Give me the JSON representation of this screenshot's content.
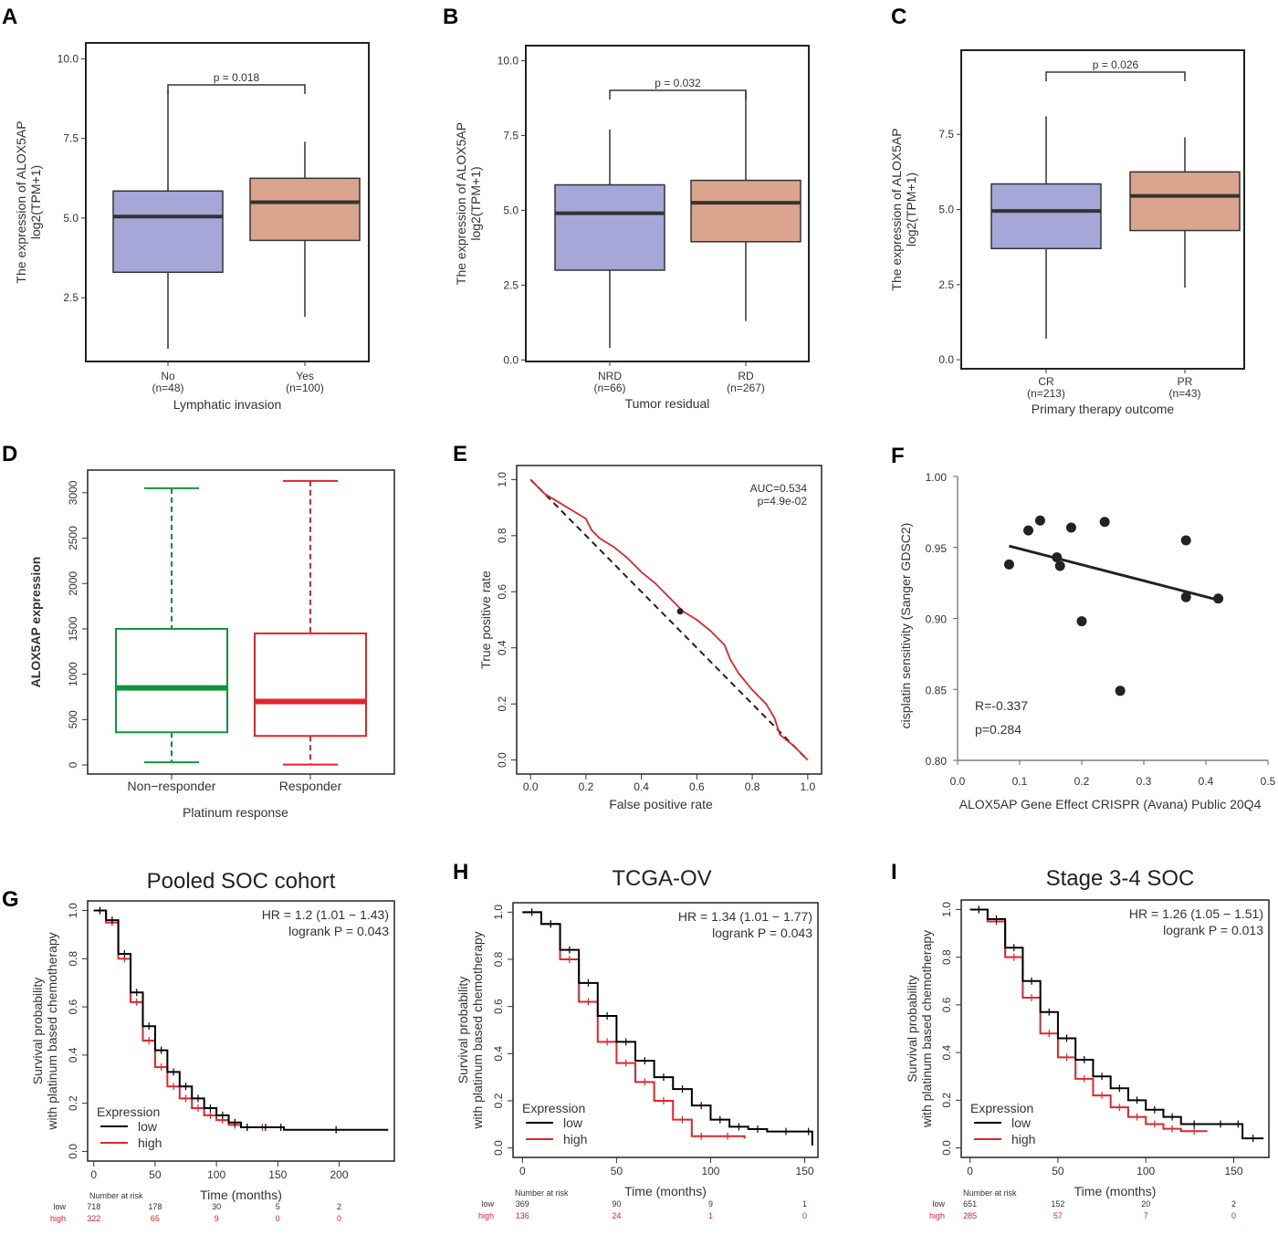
{
  "chart_data": [
    {
      "panel": "A",
      "type": "box",
      "ylabel_line1": "The expression of ALOX5AP",
      "ylabel_line2": "log2(TPM+1)",
      "xlabel": "Lymphatic invasion",
      "yticks": [
        "2.5",
        "5.0",
        "7.5",
        "10.0"
      ],
      "ylim": [
        0.5,
        10.5
      ],
      "groups": [
        {
          "name": "No",
          "n": "(n=48)",
          "color": "#a6a6d8",
          "min": 0.9,
          "q1": 3.3,
          "median": 5.05,
          "q3": 5.85,
          "max": 9.0
        },
        {
          "name": "Yes",
          "n": "(n=100)",
          "color": "#dba48e",
          "min": 1.9,
          "q1": 4.3,
          "median": 5.5,
          "q3": 6.25,
          "max": 7.4
        }
      ],
      "pvalue": "p = 0.018"
    },
    {
      "panel": "B",
      "type": "box",
      "ylabel_line1": "The expression of ALOX5AP",
      "ylabel_line2": "log2(TPM+1)",
      "xlabel": "Tumor residual",
      "yticks": [
        "0.0",
        "2.5",
        "5.0",
        "7.5",
        "10.0"
      ],
      "ylim": [
        -0.05,
        10.5
      ],
      "groups": [
        {
          "name": "NRD",
          "n": "(n=66)",
          "color": "#a6a6d8",
          "min": 0.4,
          "q1": 3.0,
          "median": 4.9,
          "q3": 5.85,
          "max": 7.7
        },
        {
          "name": "RD",
          "n": "(n=267)",
          "color": "#dba48e",
          "min": 1.3,
          "q1": 3.95,
          "median": 5.25,
          "q3": 6.0,
          "max": 9.0
        }
      ],
      "pvalue": "p = 0.032"
    },
    {
      "panel": "C",
      "type": "box",
      "ylabel_line1": "The expression of ALOX5AP",
      "ylabel_line2": "log2(TPM+1)",
      "xlabel": "Primary therapy outcome",
      "yticks": [
        "0.0",
        "2.5",
        "5.0",
        "7.5"
      ],
      "ylim": [
        -0.3,
        10.3
      ],
      "groups": [
        {
          "name": "CR",
          "n": "(n=213)",
          "color": "#a6a6d8",
          "min": 0.7,
          "q1": 3.7,
          "median": 4.95,
          "q3": 5.85,
          "max": 8.1
        },
        {
          "name": "PR",
          "n": "(n=43)",
          "color": "#dba48e",
          "min": 2.4,
          "q1": 4.3,
          "median": 5.45,
          "q3": 6.25,
          "max": 7.4
        }
      ],
      "pvalue": "p = 0.026"
    },
    {
      "panel": "D",
      "type": "box",
      "ylabel": "ALOX5AP expression",
      "xlabel": "Platinum response",
      "yticks": [
        "0",
        "500",
        "1000",
        "1500",
        "2000",
        "2500",
        "3000"
      ],
      "ylim": [
        -100,
        3250
      ],
      "groups": [
        {
          "name": "Non−responder",
          "color": "#11953b",
          "min": 30,
          "q1": 360,
          "median": 850,
          "q3": 1500,
          "max": 3050
        },
        {
          "name": "Responder",
          "color": "#e3242b",
          "min": 5,
          "q1": 320,
          "median": 700,
          "q3": 1450,
          "max": 3130
        }
      ]
    },
    {
      "panel": "E",
      "type": "line",
      "xlabel": "False positive rate",
      "ylabel": "True positive rate",
      "xticks": [
        "0.0",
        "0.2",
        "0.4",
        "0.6",
        "0.8",
        "1.0"
      ],
      "yticks": [
        "0.0",
        "0.2",
        "0.4",
        "0.6",
        "0.8",
        "1.0"
      ],
      "auc": "AUC=0.534",
      "p": "p=4.9e-02",
      "roc_x": [
        0,
        0.05,
        0.1,
        0.15,
        0.2,
        0.22,
        0.25,
        0.3,
        0.35,
        0.4,
        0.45,
        0.5,
        0.55,
        0.6,
        0.65,
        0.7,
        0.72,
        0.75,
        0.8,
        0.85,
        0.88,
        0.9,
        0.95,
        1.0
      ],
      "roc_y": [
        1.0,
        0.95,
        0.92,
        0.89,
        0.86,
        0.82,
        0.79,
        0.76,
        0.72,
        0.67,
        0.63,
        0.58,
        0.53,
        0.5,
        0.46,
        0.41,
        0.36,
        0.31,
        0.25,
        0.2,
        0.15,
        0.09,
        0.05,
        0.0
      ],
      "highlight": [
        0.54,
        0.53
      ]
    },
    {
      "panel": "F",
      "type": "scatter",
      "xlabel": "ALOX5AP Gene Effect CRISPR (Avana) Public 20Q4",
      "ylabel": "cisplatin sensitivity (Sanger GDSC2)",
      "xticks": [
        "0.0",
        "0.1",
        "0.2",
        "0.3",
        "0.4",
        "0.5"
      ],
      "yticks": [
        "0.80",
        "0.85",
        "0.90",
        "0.95",
        "1.00"
      ],
      "xlim": [
        0,
        0.5
      ],
      "ylim": [
        0.8,
        1.0
      ],
      "x": [
        0.083,
        0.114,
        0.133,
        0.16,
        0.165,
        0.183,
        0.2,
        0.237,
        0.262,
        0.368,
        0.368,
        0.42
      ],
      "y": [
        0.938,
        0.962,
        0.969,
        0.943,
        0.937,
        0.964,
        0.898,
        0.968,
        0.849,
        0.955,
        0.915,
        0.914
      ],
      "fit": [
        [
          0.083,
          0.951
        ],
        [
          0.42,
          0.913
        ]
      ],
      "r": "R=-0.337",
      "p": "p=0.284"
    },
    {
      "panel": "G",
      "type": "line",
      "title": "Pooled SOC cohort",
      "ylabel_line1": "Survival probability",
      "ylabel_line2": "with platinum based chemotherapy",
      "xlabel": "Time (months)",
      "xticks": [
        "0",
        "50",
        "100",
        "150",
        "200"
      ],
      "xlim": [
        -5,
        245
      ],
      "yticks": [
        "0.0",
        "0.2",
        "0.4",
        "0.6",
        "0.8",
        "1.0"
      ],
      "hr": "HR = 1.2 (1.01 − 1.43)",
      "logrank": "logrank P = 0.043",
      "legend_title": "Expression",
      "series": [
        {
          "name": "low",
          "color": "#000000",
          "t": [
            0,
            10,
            20,
            30,
            40,
            50,
            60,
            70,
            80,
            90,
            100,
            110,
            120,
            130,
            150,
            155,
            240
          ],
          "s": [
            1.0,
            0.96,
            0.82,
            0.66,
            0.52,
            0.42,
            0.33,
            0.27,
            0.22,
            0.18,
            0.15,
            0.12,
            0.1,
            0.1,
            0.1,
            0.09,
            0.09
          ]
        },
        {
          "name": "high",
          "color": "#e3242b",
          "t": [
            0,
            10,
            20,
            30,
            40,
            50,
            60,
            70,
            80,
            90,
            100,
            110,
            120,
            130,
            145
          ],
          "s": [
            1.0,
            0.95,
            0.8,
            0.62,
            0.46,
            0.35,
            0.27,
            0.22,
            0.18,
            0.15,
            0.13,
            0.11,
            0.1,
            0.1,
            0.1
          ]
        }
      ],
      "risk_header": "Number at risk",
      "risk_times": [
        0,
        50,
        100,
        150,
        200
      ],
      "risk_low": [
        "718",
        "178",
        "30",
        "5",
        "2"
      ],
      "risk_high": [
        "322",
        "65",
        "9",
        "0",
        "0"
      ]
    },
    {
      "panel": "H",
      "type": "line",
      "title": "TCGA-OV",
      "ylabel_line1": "Survival probability",
      "ylabel_line2": "with platinum based chemotherapy",
      "xlabel": "Time (months)",
      "xticks": [
        "0",
        "50",
        "100",
        "150"
      ],
      "xlim": [
        -5,
        157
      ],
      "yticks": [
        "0.0",
        "0.2",
        "0.4",
        "0.6",
        "0.8",
        "1.0"
      ],
      "hr": "HR = 1.34 (1.01 − 1.77)",
      "logrank": "logrank P = 0.043",
      "legend_title": "Expression",
      "series": [
        {
          "name": "low",
          "color": "#000000",
          "t": [
            0,
            10,
            20,
            30,
            40,
            50,
            60,
            70,
            80,
            90,
            100,
            110,
            120,
            130,
            150,
            154
          ],
          "s": [
            1.0,
            0.95,
            0.84,
            0.7,
            0.56,
            0.45,
            0.37,
            0.3,
            0.25,
            0.18,
            0.12,
            0.09,
            0.08,
            0.07,
            0.07,
            0.01
          ]
        },
        {
          "name": "high",
          "color": "#e3242b",
          "t": [
            0,
            10,
            20,
            30,
            40,
            50,
            60,
            70,
            80,
            90,
            100,
            118
          ],
          "s": [
            1.0,
            0.95,
            0.8,
            0.62,
            0.45,
            0.36,
            0.28,
            0.2,
            0.12,
            0.05,
            0.05,
            0.04
          ]
        }
      ],
      "risk_header": "Number at risk",
      "risk_times": [
        0,
        50,
        100,
        150
      ],
      "risk_low": [
        "369",
        "90",
        "9",
        "1"
      ],
      "risk_high": [
        "136",
        "24",
        "1",
        "0"
      ]
    },
    {
      "panel": "I",
      "type": "line",
      "title": "Stage 3-4 SOC",
      "ylabel_line1": "Survival probability",
      "ylabel_line2": "with platinum based chemotherapy",
      "xlabel": "Time (months)",
      "xticks": [
        "0",
        "50",
        "100",
        "150"
      ],
      "xlim": [
        -5,
        170
      ],
      "yticks": [
        "0.0",
        "0.2",
        "0.4",
        "0.6",
        "0.8",
        "1.0"
      ],
      "hr": "HR = 1.26 (1.05 − 1.51)",
      "logrank": "logrank P = 0.013",
      "legend_title": "Expression",
      "series": [
        {
          "name": "low",
          "color": "#000000",
          "t": [
            0,
            10,
            20,
            30,
            40,
            50,
            60,
            70,
            80,
            90,
            100,
            110,
            120,
            135,
            150,
            155,
            167
          ],
          "s": [
            1.0,
            0.96,
            0.84,
            0.7,
            0.57,
            0.46,
            0.37,
            0.3,
            0.25,
            0.2,
            0.16,
            0.13,
            0.1,
            0.1,
            0.1,
            0.04,
            0.04
          ]
        },
        {
          "name": "high",
          "color": "#e3242b",
          "t": [
            0,
            10,
            20,
            30,
            40,
            50,
            60,
            70,
            80,
            90,
            100,
            110,
            120,
            135
          ],
          "s": [
            1.0,
            0.95,
            0.8,
            0.63,
            0.48,
            0.38,
            0.29,
            0.22,
            0.17,
            0.13,
            0.1,
            0.08,
            0.07,
            0.07
          ]
        }
      ],
      "risk_header": "Number at risk",
      "risk_times": [
        0,
        50,
        100,
        150
      ],
      "risk_low": [
        "651",
        "152",
        "20",
        "2"
      ],
      "risk_high": [
        "285",
        "57",
        "7",
        "0"
      ]
    }
  ]
}
